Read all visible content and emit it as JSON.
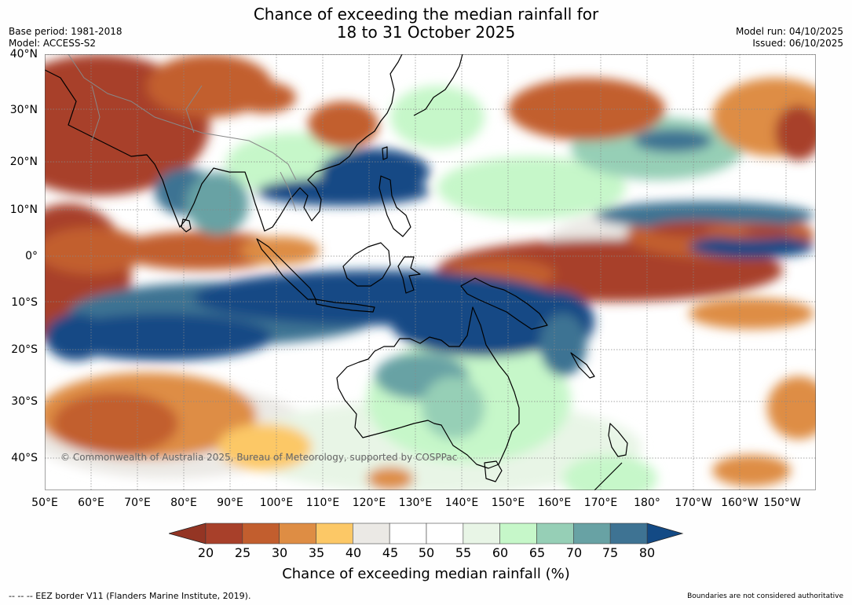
{
  "header": {
    "title_line1": "Chance of exceeding the median rainfall for",
    "title_line2": "18 to 31 October 2025",
    "base_period": "Base period: 1981-2018",
    "model": "Model: ACCESS-S2",
    "model_run": "Model run: 04/10/2025",
    "issued": "Issued: 06/10/2025"
  },
  "map": {
    "lat_labels": [
      "40°N",
      "30°N",
      "20°N",
      "10°N",
      "0°",
      "10°S",
      "20°S",
      "30°S",
      "40°S"
    ],
    "lon_labels": [
      "50°E",
      "60°E",
      "70°E",
      "80°E",
      "90°E",
      "100°E",
      "110°E",
      "120°E",
      "130°E",
      "140°E",
      "150°E",
      "160°E",
      "170°E",
      "180°",
      "170°W",
      "160°W",
      "150°W"
    ],
    "copyright": "© Commonwealth of Australia 2025, Bureau of Meteorology, supported by COSPPac"
  },
  "colorbar": {
    "ticks": [
      "20",
      "25",
      "30",
      "35",
      "40",
      "45",
      "50",
      "55",
      "60",
      "65",
      "70",
      "75",
      "80"
    ],
    "title": "Chance of exceeding median rainfall (%)",
    "colors": [
      "#a8402a",
      "#c25e2e",
      "#de8d44",
      "#fcc866",
      "#ebe9e5",
      "#ffffff",
      "#ffffff",
      "#e8f5e6",
      "#c6f7c9",
      "#96cfb6",
      "#68a2a4",
      "#3e7393",
      "#134a85"
    ],
    "low_color": "#943524",
    "high_color": "#134a85"
  },
  "footer": {
    "eez_note": "--  --  -- EEZ border V11 (Flanders Marine Institute, 2019).",
    "boundaries_note": "Boundaries are not considered authoritative"
  }
}
